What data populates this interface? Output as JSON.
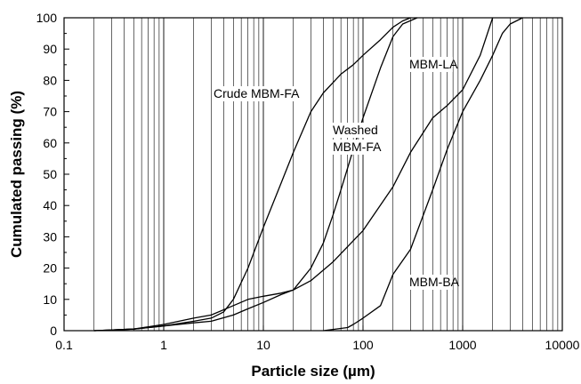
{
  "chart_data": {
    "type": "line",
    "xlabel": "Particle size (µm)",
    "ylabel": "Cumulated passing (%)",
    "x_scale": "log",
    "xlim": [
      0.1,
      10000
    ],
    "ylim": [
      0,
      100
    ],
    "x_ticks": [
      "0.1",
      "1",
      "10",
      "100",
      "1000",
      "10000"
    ],
    "y_ticks": [
      "0",
      "10",
      "20",
      "30",
      "40",
      "50",
      "60",
      "70",
      "80",
      "90",
      "100"
    ],
    "grid": "minor log x gridlines",
    "annotations": [
      {
        "text": "Crude MBM-FA",
        "lines": [
          "Crude MBM-FA"
        ]
      },
      {
        "text": "Washed MBM-FA",
        "lines": [
          "Washed",
          "MBM-FA"
        ]
      },
      {
        "text": "MBM-LA",
        "lines": [
          "MBM-LA"
        ]
      },
      {
        "text": "MBM-BA",
        "lines": [
          "MBM-BA"
        ]
      }
    ],
    "series": [
      {
        "color": "#000000",
        "x": [
          0.2,
          0.5,
          1,
          2,
          3,
          4,
          5,
          7,
          10,
          15,
          20,
          30,
          40,
          60,
          80,
          100,
          150,
          200,
          250,
          300
        ],
        "y": [
          0,
          0.5,
          1.5,
          3,
          4,
          6,
          10,
          20,
          33,
          47,
          57,
          70,
          76,
          82,
          85,
          88,
          93,
          97,
          99,
          100
        ]
      },
      {
        "color": "#000000",
        "x": [
          0.2,
          0.5,
          1,
          2,
          3,
          5,
          7,
          10,
          15,
          20,
          30,
          40,
          50,
          60,
          70,
          80,
          100,
          150,
          200,
          250,
          350
        ],
        "y": [
          0,
          0.5,
          1.5,
          2.5,
          3,
          5,
          7,
          9,
          11.5,
          13,
          20,
          28,
          37,
          45,
          52,
          58,
          68,
          84,
          94,
          98,
          100
        ]
      },
      {
        "color": "#000000",
        "x": [
          0.2,
          0.5,
          1,
          2,
          3,
          5,
          7,
          10,
          15,
          20,
          30,
          50,
          100,
          200,
          300,
          500,
          700,
          1000,
          1500,
          2000
        ],
        "y": [
          0,
          0.5,
          2,
          4,
          5,
          8,
          10,
          11,
          12,
          13,
          16,
          22,
          32,
          46,
          57,
          68,
          72,
          77,
          88,
          100
        ]
      },
      {
        "color": "#000000",
        "x": [
          40,
          70,
          80,
          100,
          150,
          200,
          300,
          500,
          700,
          1000,
          1500,
          2000,
          2500,
          3000,
          4000
        ],
        "y": [
          0,
          1,
          2,
          4,
          8,
          18,
          26,
          45,
          58,
          70,
          80,
          88,
          95,
          98,
          100
        ]
      }
    ]
  }
}
